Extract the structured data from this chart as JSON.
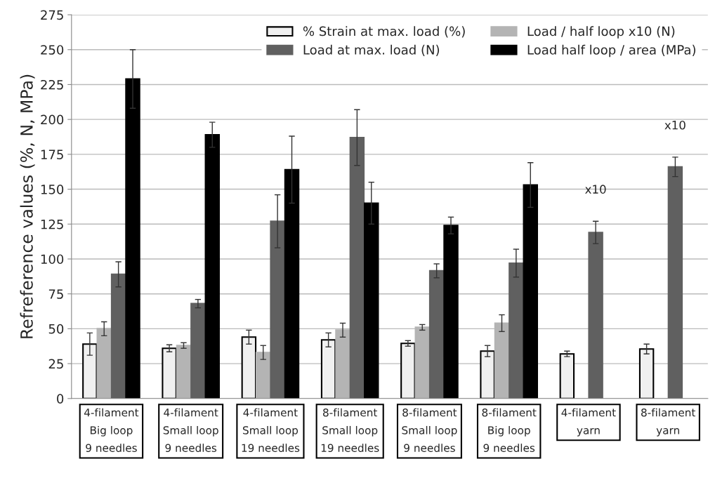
{
  "chart_data": {
    "type": "bar",
    "ylabel": "Refreference values (%, N, MPa)",
    "categories": [
      "4-filament\nBig loop\n9 needles",
      "4-filament\nSmall loop\n9 needles",
      "4-filament\nSmall loop\n19 needles",
      "8-filament\nSmall loop\n19 needles",
      "8-filament\nSmall loop\n9 needles",
      "8-filament\nBig loop\n9 needles",
      "4-filament\nyarn",
      "8-filament\nyarn"
    ],
    "series": [
      {
        "name": "% Strain at max. load (%)",
        "color": "#f0f0f0",
        "values": [
          39,
          36,
          44,
          42,
          39.5,
          34,
          32,
          35.5
        ],
        "errors": [
          8,
          2.5,
          5,
          5,
          2,
          4,
          2,
          3.5
        ]
      },
      {
        "name": "Load / half loop x10 (N)",
        "color": "#b4b4b4",
        "values": [
          50,
          38,
          33,
          49,
          51,
          54,
          null,
          null
        ],
        "errors": [
          5,
          2,
          5,
          5,
          2,
          6,
          null,
          null
        ]
      },
      {
        "name": "Load at max. load (N)",
        "color": "#606060",
        "values": [
          89,
          68,
          127,
          187,
          91.5,
          97,
          119,
          166
        ],
        "errors": [
          9,
          3,
          19,
          20,
          5,
          10,
          8,
          7
        ]
      },
      {
        "name": "Load half loop / area (MPa)",
        "color": "#000000",
        "values": [
          229,
          189,
          164,
          140,
          124,
          153,
          null,
          null
        ],
        "errors": [
          21,
          9,
          24,
          15,
          6,
          16,
          null,
          null
        ]
      }
    ],
    "annotations": [
      "x10",
      "x10"
    ],
    "ylim": [
      0,
      275
    ],
    "yticks": [
      0,
      25,
      50,
      75,
      100,
      125,
      150,
      175,
      200,
      225,
      250,
      275
    ],
    "grid": "y",
    "legend": "top right"
  }
}
